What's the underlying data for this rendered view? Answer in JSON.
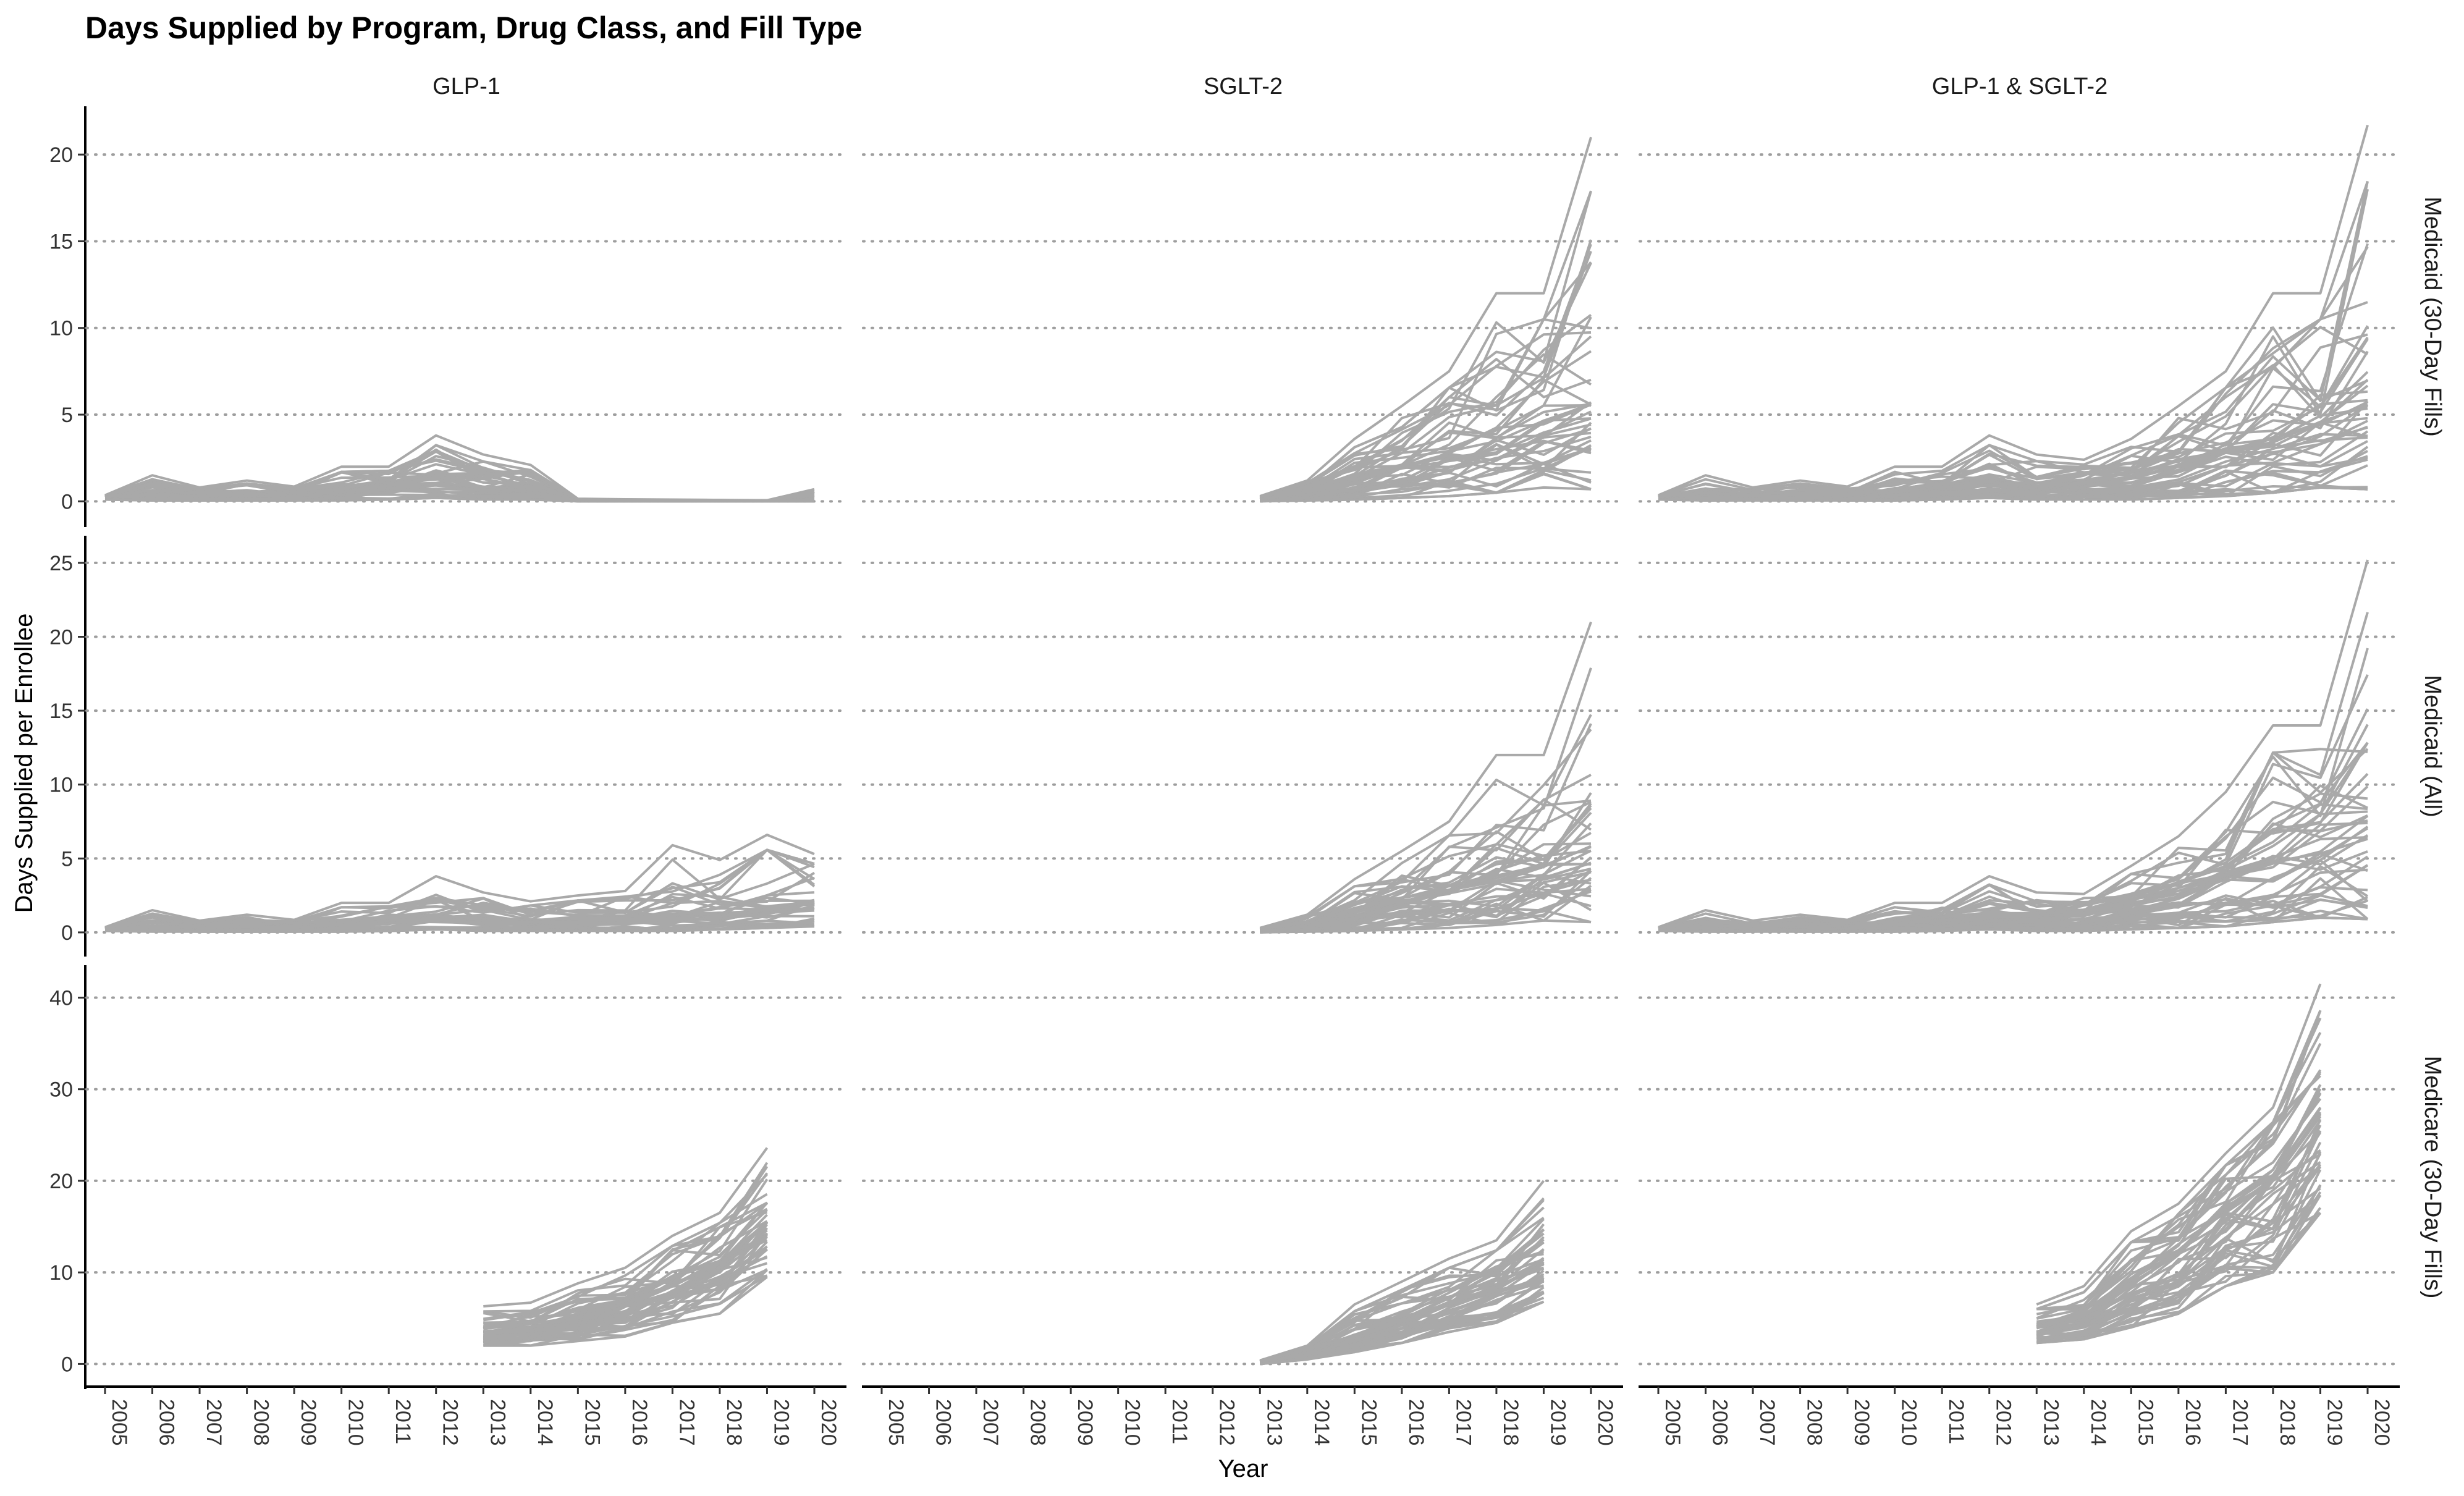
{
  "chart_data": {
    "type": "line",
    "title": "Days Supplied by Program, Drug Class, and Fill Type",
    "xlabel": "Year",
    "ylabel": "Days Supplied per Enrollee",
    "x_ticks": [
      "2005",
      "2006",
      "2007",
      "2008",
      "2009",
      "2010",
      "2011",
      "2012",
      "2013",
      "2014",
      "2015",
      "2016",
      "2017",
      "2018",
      "2019",
      "2020"
    ],
    "xlim": [
      2005,
      2020
    ],
    "columns": [
      "GLP-1",
      "SGLT-2",
      "GLP-1 & SGLT-2"
    ],
    "rows": [
      {
        "label": "Medicaid (30-Day Fills)",
        "ylim": [
          -1.2,
          22.5
        ],
        "ticks": [
          0,
          5,
          10,
          15,
          20
        ]
      },
      {
        "label": "Medicaid (All)",
        "ylim": [
          -1.3,
          26.5
        ],
        "ticks": [
          0,
          5,
          10,
          15,
          20,
          25
        ]
      },
      {
        "label": "Medicare (30-Day Fills)",
        "ylim": [
          -2.2,
          43
        ],
        "ticks": [
          0,
          10,
          20,
          30,
          40
        ]
      }
    ],
    "grid": "horizontal dotted",
    "series_color": "#a9a9a9",
    "panels": [
      {
        "row": 0,
        "col": 0,
        "start_year": 2005,
        "end_year": 2020,
        "n_series": 40,
        "median": [
          0.25,
          0.35,
          0.3,
          0.35,
          0.3,
          0.5,
          0.8,
          1.0,
          0.7,
          0.6,
          0.05,
          0.03,
          0.02,
          0.02,
          0.02,
          0.05
        ],
        "max": [
          0.35,
          1.5,
          0.8,
          1.2,
          0.85,
          2.0,
          2.0,
          3.8,
          2.7,
          2.1,
          0.15,
          0.12,
          0.1,
          0.08,
          0.06,
          0.7
        ],
        "min": [
          0.1,
          0.05,
          0.05,
          0.05,
          0.05,
          0.05,
          0.1,
          0.2,
          0.1,
          0.1,
          0.0,
          0.0,
          0.0,
          0.0,
          0.0,
          0.0
        ]
      },
      {
        "row": 0,
        "col": 1,
        "start_year": 2013,
        "end_year": 2020,
        "n_series": 45,
        "median": [
          0.1,
          0.5,
          1.2,
          2.0,
          2.8,
          3.6,
          4.5,
          5.5
        ],
        "max": [
          0.3,
          1.2,
          3.6,
          5.5,
          7.5,
          12.0,
          12.0,
          21.0
        ],
        "min": [
          0.0,
          0.05,
          0.1,
          0.2,
          0.3,
          0.5,
          0.8,
          0.7
        ]
      },
      {
        "row": 0,
        "col": 2,
        "start_year": 2005,
        "end_year": 2020,
        "n_series": 45,
        "median": [
          0.25,
          0.35,
          0.3,
          0.35,
          0.3,
          0.5,
          0.8,
          1.0,
          0.8,
          1.0,
          1.3,
          2.0,
          2.8,
          3.6,
          4.5,
          5.5
        ],
        "max": [
          0.35,
          1.5,
          0.8,
          1.2,
          0.85,
          2.0,
          2.0,
          3.8,
          2.7,
          2.4,
          3.6,
          5.5,
          7.5,
          12.0,
          12.0,
          21.7
        ],
        "min": [
          0.1,
          0.05,
          0.05,
          0.05,
          0.05,
          0.05,
          0.1,
          0.2,
          0.1,
          0.1,
          0.1,
          0.2,
          0.3,
          0.5,
          0.8,
          0.7
        ]
      },
      {
        "row": 1,
        "col": 0,
        "start_year": 2005,
        "end_year": 2020,
        "n_series": 40,
        "median": [
          0.25,
          0.35,
          0.3,
          0.35,
          0.3,
          0.5,
          0.8,
          1.0,
          0.8,
          0.7,
          0.8,
          0.9,
          1.0,
          1.2,
          1.5,
          2.0
        ],
        "max": [
          0.35,
          1.5,
          0.8,
          1.2,
          0.85,
          2.0,
          2.0,
          3.8,
          2.7,
          2.1,
          2.5,
          2.8,
          5.9,
          4.9,
          6.6,
          5.3
        ],
        "min": [
          0.1,
          0.05,
          0.05,
          0.05,
          0.05,
          0.05,
          0.1,
          0.2,
          0.1,
          0.1,
          0.1,
          0.1,
          0.1,
          0.2,
          0.3,
          0.4
        ]
      },
      {
        "row": 1,
        "col": 1,
        "start_year": 2013,
        "end_year": 2020,
        "n_series": 45,
        "median": [
          0.1,
          0.5,
          1.2,
          2.0,
          2.8,
          3.6,
          4.5,
          5.5
        ],
        "max": [
          0.3,
          1.2,
          3.6,
          5.5,
          7.5,
          12.0,
          12.0,
          21.0
        ],
        "min": [
          0.0,
          0.05,
          0.1,
          0.2,
          0.3,
          0.5,
          0.8,
          0.7
        ]
      },
      {
        "row": 1,
        "col": 2,
        "start_year": 2005,
        "end_year": 2020,
        "n_series": 45,
        "median": [
          0.25,
          0.35,
          0.3,
          0.35,
          0.3,
          0.5,
          0.8,
          1.0,
          0.9,
          1.2,
          1.8,
          2.6,
          3.8,
          4.8,
          6.0,
          7.5
        ],
        "max": [
          0.35,
          1.5,
          0.8,
          1.2,
          0.85,
          2.0,
          2.0,
          3.8,
          2.7,
          2.6,
          4.5,
          6.5,
          9.5,
          14.0,
          14.0,
          25.2
        ],
        "min": [
          0.1,
          0.05,
          0.05,
          0.05,
          0.05,
          0.05,
          0.1,
          0.2,
          0.1,
          0.1,
          0.2,
          0.3,
          0.4,
          0.7,
          1.0,
          0.9
        ]
      },
      {
        "row": 2,
        "col": 0,
        "start_year": 2013,
        "end_year": 2019,
        "n_series": 50,
        "median": [
          3.5,
          4.0,
          5.0,
          6.3,
          8.5,
          11.0,
          15.5
        ],
        "max": [
          6.3,
          6.7,
          8.8,
          10.5,
          14.0,
          16.5,
          23.6
        ],
        "min": [
          2.0,
          2.0,
          2.5,
          3.0,
          4.5,
          5.5,
          9.5
        ]
      },
      {
        "row": 2,
        "col": 1,
        "start_year": 2013,
        "end_year": 2019,
        "n_series": 50,
        "median": [
          0.2,
          1.2,
          2.8,
          4.5,
          6.5,
          8.0,
          10.5
        ],
        "max": [
          0.4,
          2.0,
          6.5,
          9.0,
          11.5,
          13.5,
          20.0
        ],
        "min": [
          0.0,
          0.5,
          1.3,
          2.3,
          3.5,
          4.5,
          6.8
        ]
      },
      {
        "row": 2,
        "col": 2,
        "start_year": 2013,
        "end_year": 2019,
        "n_series": 50,
        "median": [
          4.0,
          5.2,
          8.5,
          12.0,
          16.5,
          20.0,
          27.0
        ],
        "max": [
          6.5,
          8.5,
          14.5,
          17.5,
          23.0,
          28.0,
          41.5
        ],
        "min": [
          2.3,
          2.7,
          4.0,
          5.5,
          8.5,
          10.0,
          16.5
        ]
      }
    ]
  }
}
